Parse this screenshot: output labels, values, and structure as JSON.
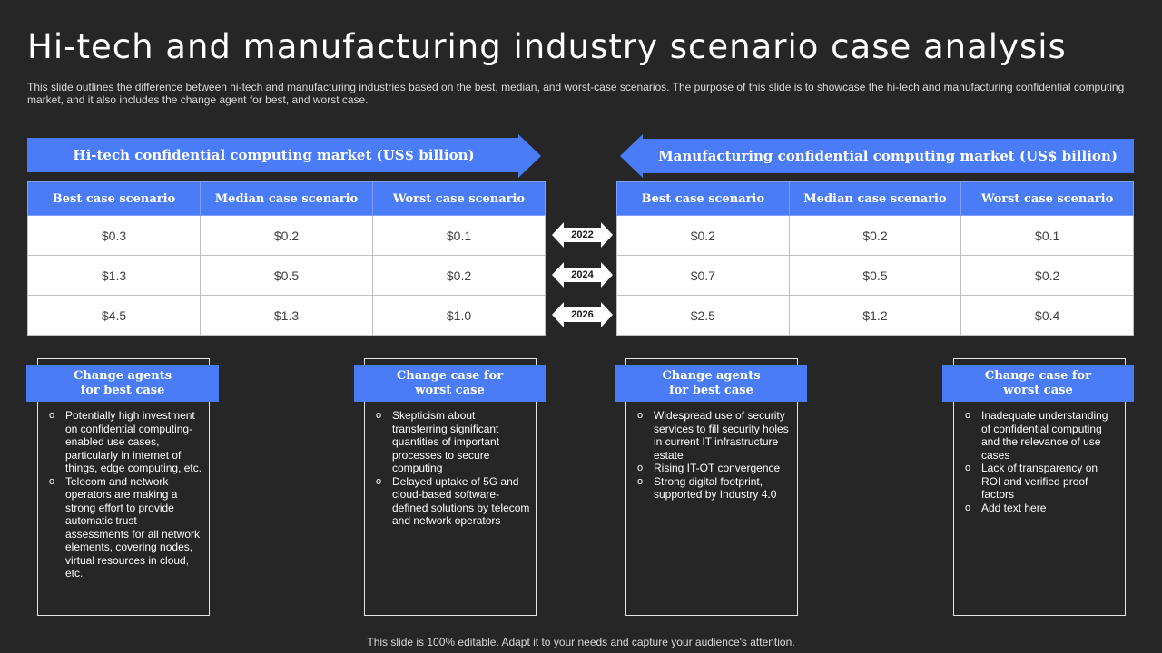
{
  "title": "Hi-tech and manufacturing industry scenario case analysis",
  "subtitle": "This slide outlines the difference between hi-tech and manufacturing industries based on the best, median, and worst-case scenarios. The purpose of this slide is to showcase the hi-tech and manufacturing confidential computing market, and it also includes the change agent for best, and worst case.",
  "hitech": {
    "banner": "Hi-tech confidential computing market (US$ billion)",
    "headers": [
      "Best case scenario",
      "Median case scenario",
      "Worst case scenario"
    ],
    "rows": [
      [
        "$0.3",
        "$0.2",
        "$0.1"
      ],
      [
        "$1.3",
        "$0.5",
        "$0.2"
      ],
      [
        "$4.5",
        "$1.3",
        "$1.0"
      ]
    ]
  },
  "manufacturing": {
    "banner": "Manufacturing confidential computing market (US$ billion)",
    "headers": [
      "Best case scenario",
      "Median case scenario",
      "Worst case scenario"
    ],
    "rows": [
      [
        "$0.2",
        "$0.2",
        "$0.1"
      ],
      [
        "$0.7",
        "$0.5",
        "$0.2"
      ],
      [
        "$2.5",
        "$1.2",
        "$0.4"
      ]
    ]
  },
  "years": [
    "2022",
    "2024",
    "2026"
  ],
  "boxes": [
    {
      "heading": "Change agents for best case",
      "items": [
        "Potentially high investment on confidential computing-enabled use cases, particularly in internet of things, edge computing, etc.",
        "Telecom and network operators are making a strong effort to provide automatic trust assessments for all network elements, covering nodes, virtual resources in cloud, etc."
      ]
    },
    {
      "heading": "Change case for worst case",
      "items": [
        "Skepticism about transferring significant quantities of important processes to secure computing",
        "Delayed uptake of 5G and cloud-based software-defined solutions by telecom and network operators"
      ]
    },
    {
      "heading": "Change agents for best case",
      "items": [
        "Widespread use of security services to fill security holes in current IT infrastructure estate",
        "Rising IT-OT convergence",
        "Strong digital footprint, supported by Industry 4.0"
      ]
    },
    {
      "heading": "Change case for worst case",
      "items": [
        "Inadequate understanding of confidential computing and the relevance of use cases",
        "Lack of transparency on ROI and verified proof factors",
        "Add text here"
      ]
    }
  ],
  "footer": "This slide is 100% editable. Adapt it to your needs and capture your audience's attention.",
  "colors": {
    "background": "#262626",
    "accent": "#4a7cf7",
    "table_bg": "#ffffff"
  }
}
